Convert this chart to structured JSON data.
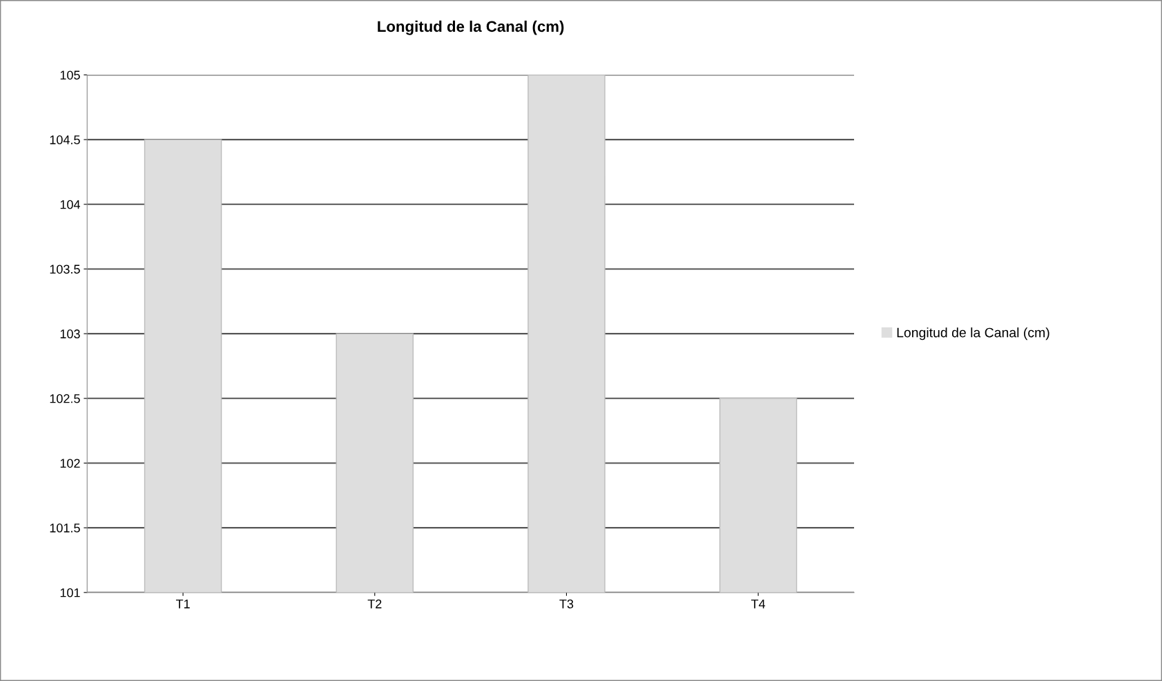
{
  "chart_data": {
    "type": "bar",
    "title": "Longitud de la Canal (cm)",
    "categories": [
      "T1",
      "T2",
      "T3",
      "T4"
    ],
    "series": [
      {
        "name": "Longitud de la Canal (cm)",
        "color": "#dedede",
        "values": [
          104.5,
          103,
          105,
          102.5
        ]
      }
    ],
    "ylim": [
      101,
      105
    ],
    "yticks": [
      101,
      101.5,
      102,
      102.5,
      103,
      103.5,
      104,
      104.5,
      105
    ],
    "grid": "y",
    "legend": "right"
  }
}
